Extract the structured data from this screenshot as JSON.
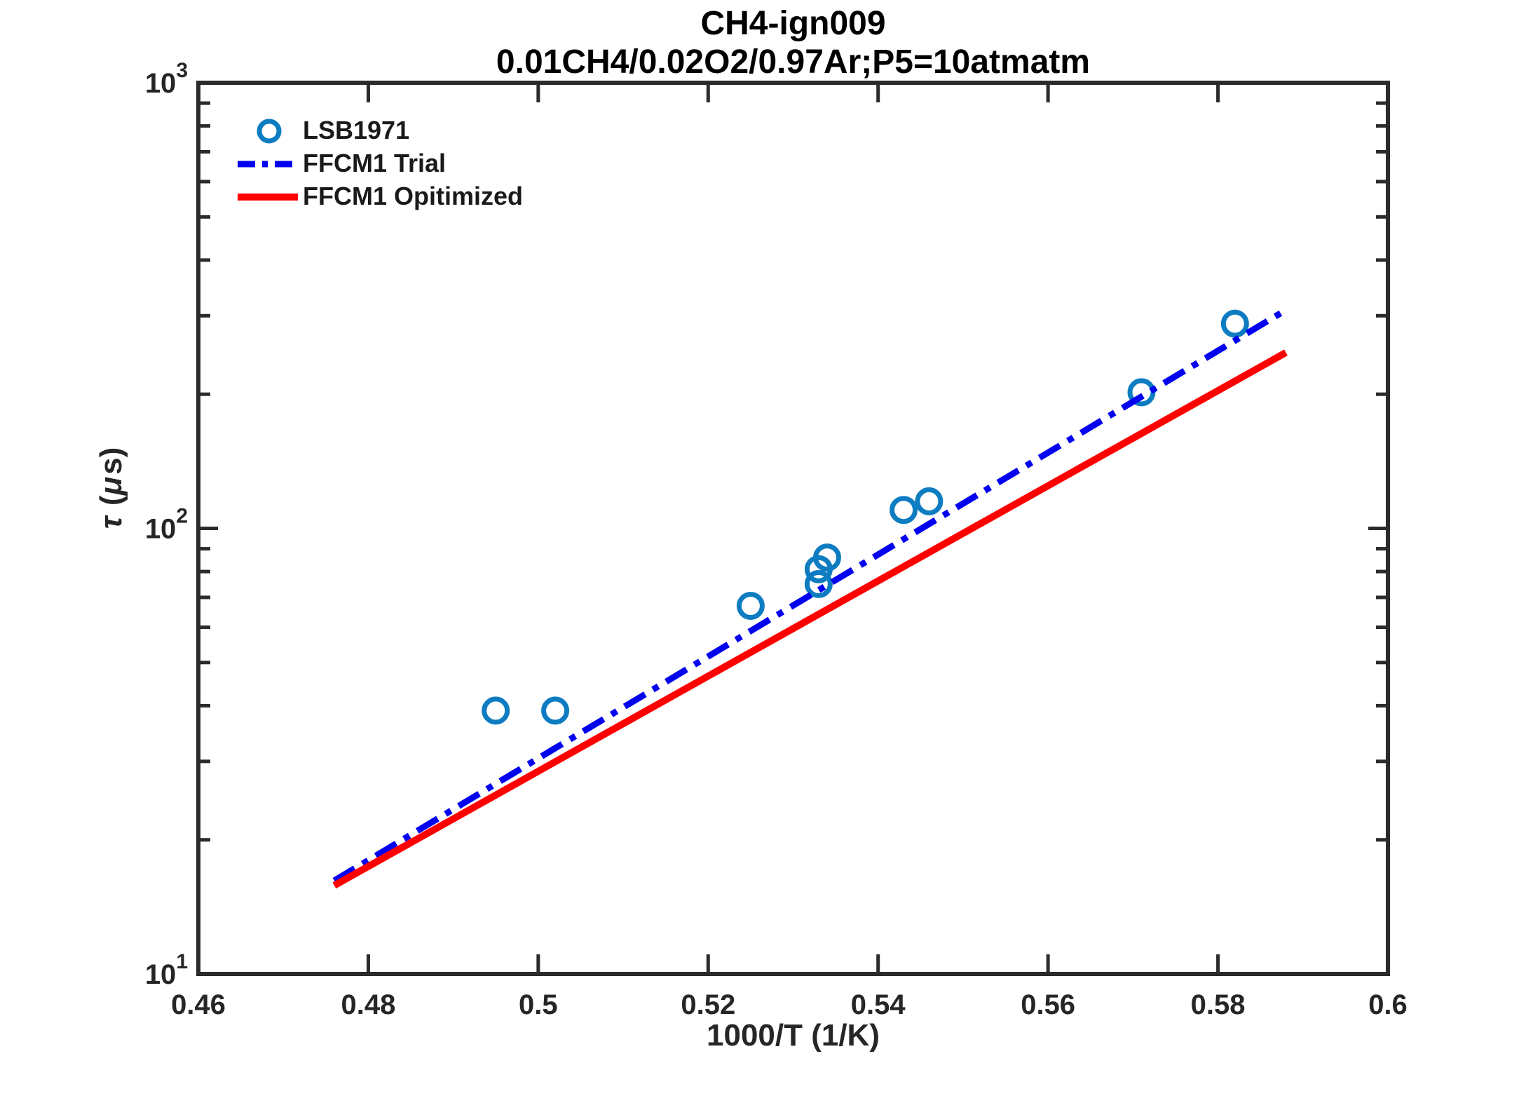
{
  "chart_data": {
    "type": "scatter",
    "title": "CH4-ign009",
    "subtitle": "0.01CH4/0.02O2/0.97Ar;P5=10atmatm",
    "xlabel": "1000/T (1/K)",
    "ylabel": "τ (μs)",
    "point_format": "[1000/T (1/K), tau (microseconds)]",
    "x_axis": {
      "scale": "linear",
      "min": 0.46,
      "max": 0.6,
      "tick_values": [
        0.46,
        0.48,
        0.5,
        0.52,
        0.54,
        0.56,
        0.58,
        0.6
      ],
      "tick_labels": [
        "0.46",
        "0.48",
        "0.5",
        "0.52",
        "0.54",
        "0.56",
        "0.58",
        "0.6"
      ]
    },
    "y_axis": {
      "scale": "log",
      "min": 10,
      "max": 1000,
      "tick_values": [
        10,
        100,
        1000
      ],
      "tick_labels": [
        "10^1",
        "10^2",
        "10^3"
      ],
      "minor_tick_values": [
        20,
        30,
        40,
        50,
        60,
        70,
        80,
        90,
        200,
        300,
        400,
        500,
        600,
        700,
        800,
        900
      ]
    },
    "grid": false,
    "legend": {
      "position": "top-left",
      "box": false
    },
    "frame_color": "#2b2b2b",
    "series": [
      {
        "name": "LSB1971",
        "type": "scatter",
        "marker": "open-circle",
        "color": "#0d7cc1",
        "points": [
          [
            0.495,
            39
          ],
          [
            0.502,
            39
          ],
          [
            0.525,
            67
          ],
          [
            0.533,
            75
          ],
          [
            0.533,
            81
          ],
          [
            0.534,
            86
          ],
          [
            0.543,
            110
          ],
          [
            0.546,
            115
          ],
          [
            0.571,
            202
          ],
          [
            0.582,
            288
          ]
        ]
      },
      {
        "name": "FFCM1 Trial",
        "type": "line",
        "line_style": "dash-dot",
        "color": "#0202ee",
        "points": [
          [
            0.476,
            16.2
          ],
          [
            0.588,
            309
          ]
        ]
      },
      {
        "name": "FFCM1 Opitimized",
        "type": "line",
        "line_style": "solid",
        "color": "#ff0000",
        "points": [
          [
            0.476,
            15.8
          ],
          [
            0.588,
            248
          ]
        ]
      }
    ]
  }
}
